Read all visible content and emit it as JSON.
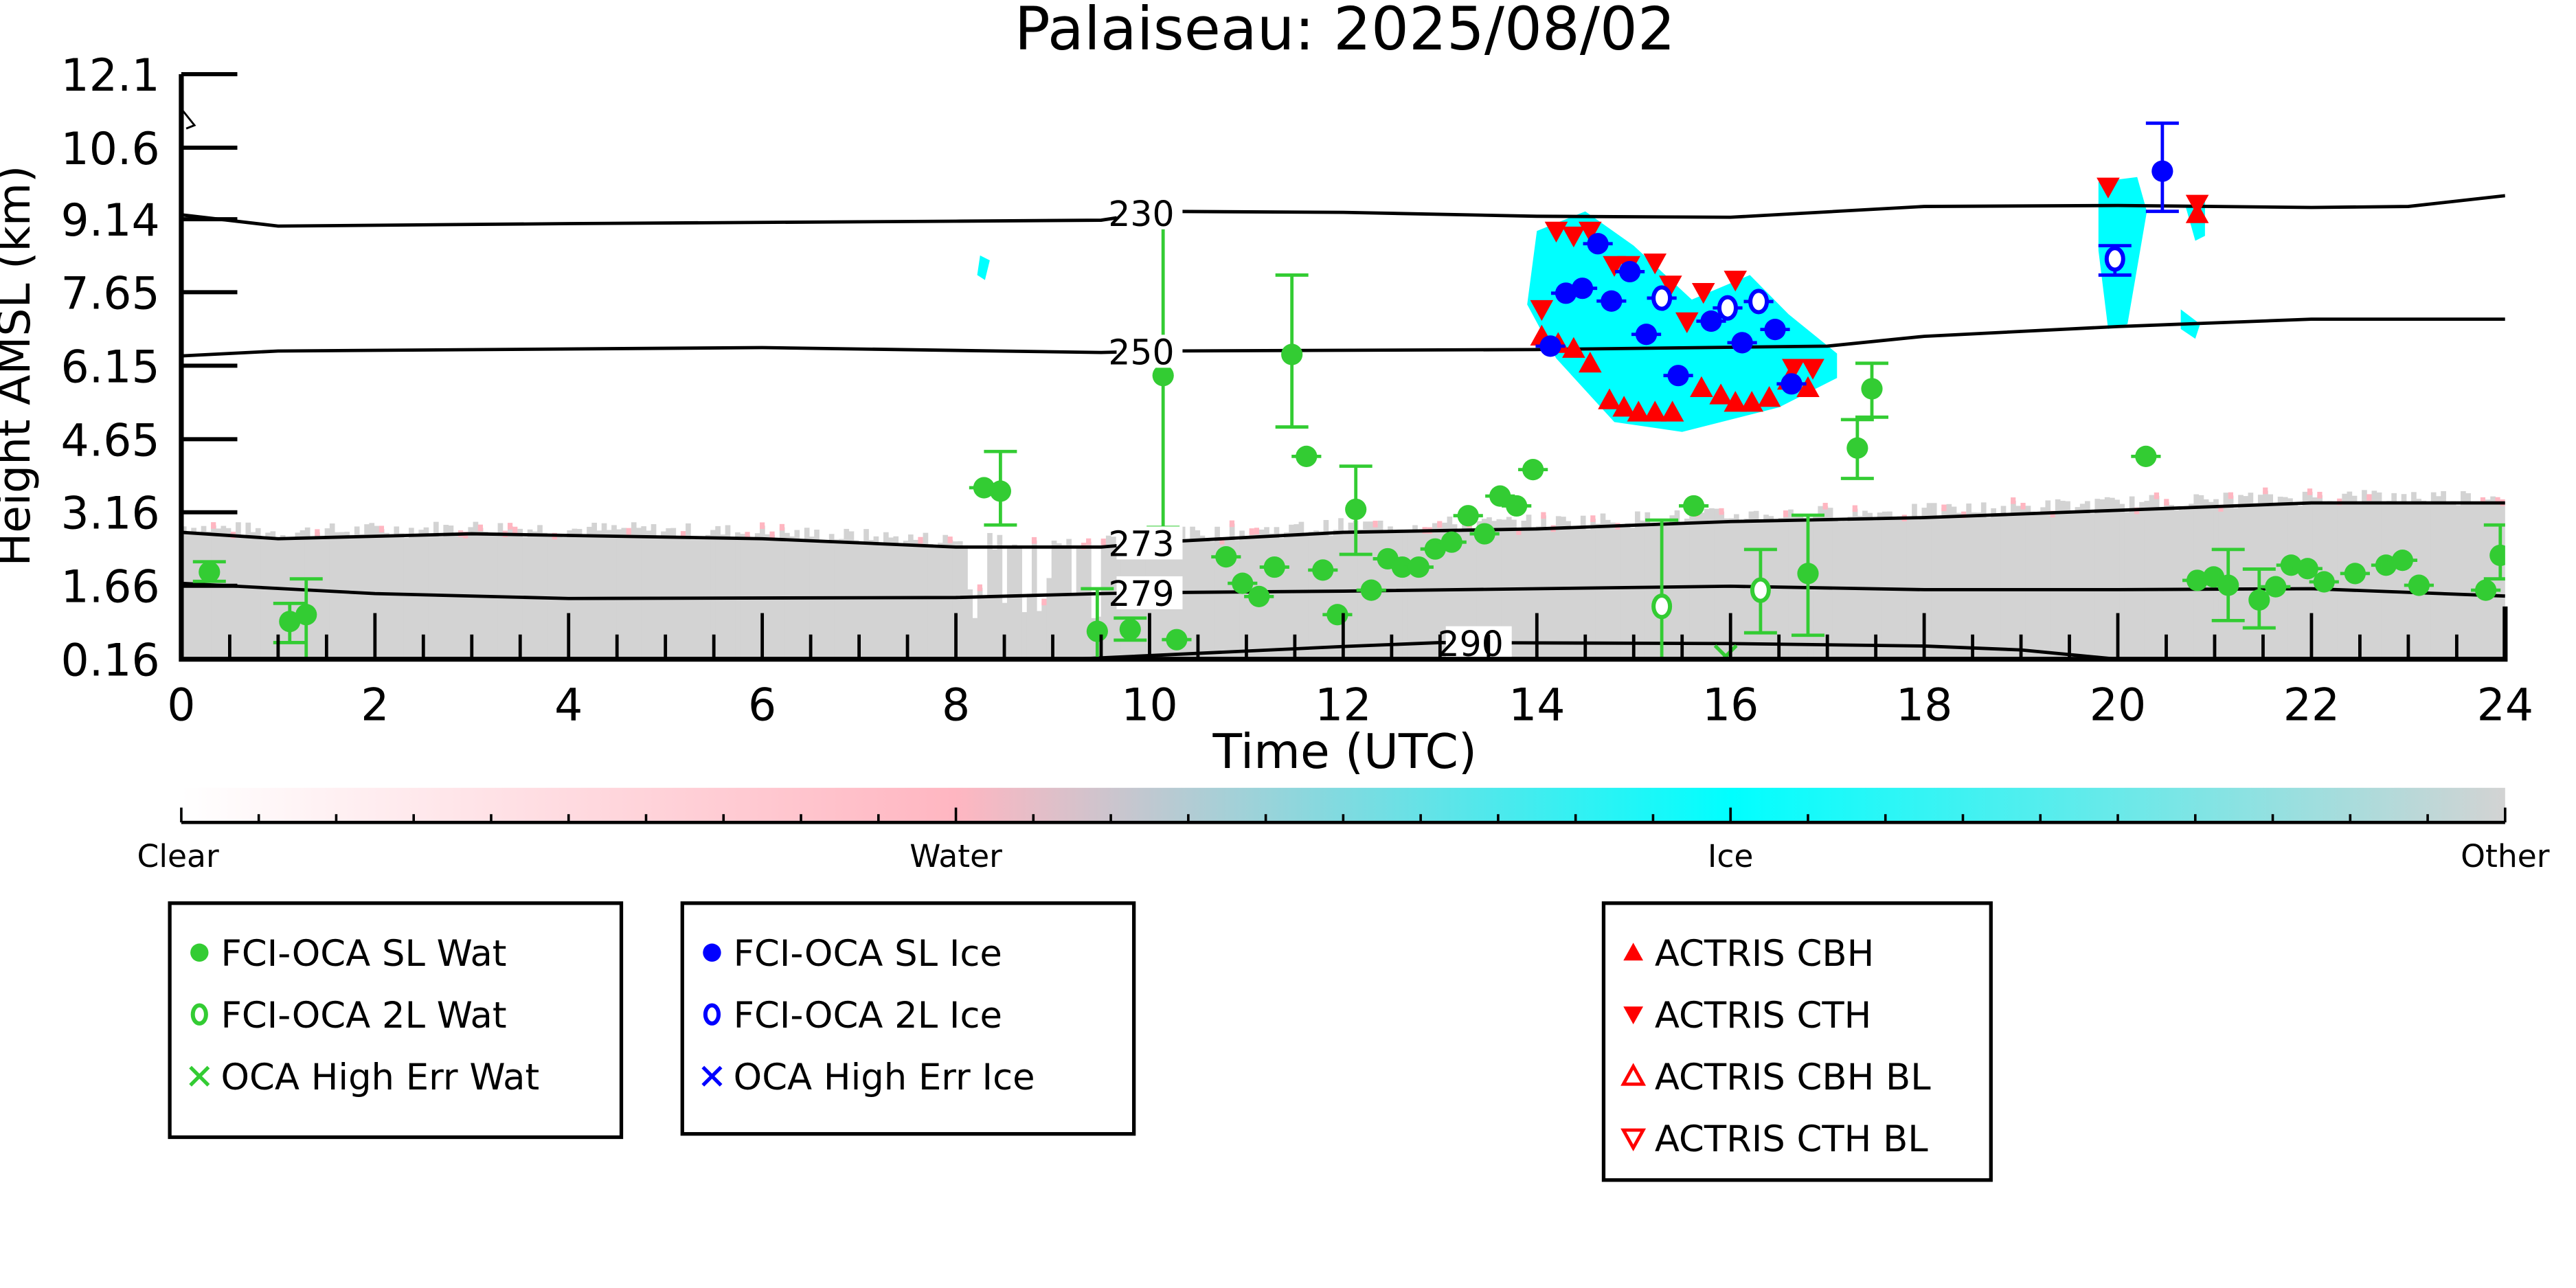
{
  "chart_data": {
    "type": "scatter",
    "title": "Palaiseau: 2025/08/02",
    "xlabel": "Time (UTC)",
    "ylabel": "Height AMSL (km)",
    "xlim": [
      0,
      24
    ],
    "ylim": [
      0.16,
      12.1
    ],
    "xticks": [
      "0",
      "2",
      "4",
      "6",
      "8",
      "10",
      "12",
      "14",
      "16",
      "18",
      "20",
      "22",
      "24"
    ],
    "yticks": [
      "0.16",
      "1.66",
      "3.16",
      "4.65",
      "6.15",
      "7.65",
      "9.14",
      "10.6",
      "12.1"
    ],
    "colorbar": {
      "labels": [
        "Clear",
        "Water",
        "Ice",
        "Other"
      ],
      "colors": [
        "#ffffff",
        "#ffb6c1",
        "#00ffff",
        "#d3d3d3"
      ]
    },
    "contours": [
      {
        "label": "230",
        "label_x": 10,
        "points": [
          [
            0,
            9.23
          ],
          [
            1,
            9.0
          ],
          [
            4,
            9.05
          ],
          [
            8,
            9.1
          ],
          [
            9.5,
            9.12
          ],
          [
            10.1,
            9.3
          ],
          [
            12,
            9.28
          ],
          [
            14,
            9.2
          ],
          [
            16,
            9.18
          ],
          [
            18,
            9.4
          ],
          [
            20,
            9.42
          ],
          [
            22,
            9.38
          ],
          [
            23,
            9.4
          ],
          [
            24,
            9.62
          ]
        ]
      },
      {
        "label": "250",
        "label_x": 10,
        "points": [
          [
            0,
            6.35
          ],
          [
            1,
            6.45
          ],
          [
            6,
            6.52
          ],
          [
            9.5,
            6.42
          ],
          [
            10.1,
            6.45
          ],
          [
            14,
            6.48
          ],
          [
            17,
            6.55
          ],
          [
            18,
            6.75
          ],
          [
            20,
            6.95
          ],
          [
            22,
            7.1
          ],
          [
            24,
            7.1
          ]
        ]
      },
      {
        "label": "273",
        "label_x": 10,
        "points": [
          [
            0,
            2.75
          ],
          [
            1,
            2.62
          ],
          [
            3,
            2.72
          ],
          [
            6,
            2.62
          ],
          [
            8,
            2.45
          ],
          [
            9.5,
            2.45
          ],
          [
            10.1,
            2.55
          ],
          [
            12,
            2.75
          ],
          [
            14,
            2.82
          ],
          [
            16,
            2.97
          ],
          [
            18,
            3.05
          ],
          [
            20,
            3.2
          ],
          [
            22,
            3.35
          ],
          [
            24,
            3.35
          ]
        ]
      },
      {
        "label": "279",
        "label_x": 10,
        "points": [
          [
            0,
            1.71
          ],
          [
            2,
            1.5
          ],
          [
            4,
            1.4
          ],
          [
            8,
            1.42
          ],
          [
            9.5,
            1.5
          ],
          [
            10.1,
            1.52
          ],
          [
            12,
            1.55
          ],
          [
            16,
            1.65
          ],
          [
            18,
            1.58
          ],
          [
            20,
            1.58
          ],
          [
            22,
            1.6
          ],
          [
            24,
            1.45
          ]
        ]
      },
      {
        "label": "290",
        "label_x": 13.4,
        "points": [
          [
            9.2,
            0.16
          ],
          [
            12,
            0.42
          ],
          [
            13,
            0.5
          ],
          [
            16,
            0.48
          ],
          [
            18,
            0.43
          ],
          [
            19,
            0.35
          ],
          [
            20,
            0.16
          ]
        ]
      }
    ],
    "series": [
      {
        "name": "FCI-OCA SL Wat",
        "color": "#33cc33",
        "marker": "filled-circle",
        "points": [
          {
            "x": 0.29,
            "y": 1.94,
            "err": [
              1.75,
              2.15
            ]
          },
          {
            "x": 1.12,
            "y": 0.93,
            "err": [
              0.5,
              1.3
            ]
          },
          {
            "x": 1.29,
            "y": 1.07,
            "err": [
              0.16,
              1.8
            ]
          },
          {
            "x": 8.29,
            "y": 3.66
          },
          {
            "x": 8.46,
            "y": 3.59,
            "err": [
              2.9,
              4.4
            ]
          },
          {
            "x": 10.14,
            "y": 5.95,
            "err": [
              2.85,
              9.0
            ]
          },
          {
            "x": 11.47,
            "y": 6.38,
            "err": [
              4.9,
              8.0
            ]
          },
          {
            "x": 11.62,
            "y": 4.3
          },
          {
            "x": 9.46,
            "y": 0.73,
            "err": [
              0.16,
              1.6
            ]
          },
          {
            "x": 9.8,
            "y": 0.77,
            "err": [
              0.55,
              1.0
            ]
          },
          {
            "x": 10.28,
            "y": 0.56
          },
          {
            "x": 10.79,
            "y": 2.25
          },
          {
            "x": 10.96,
            "y": 1.71
          },
          {
            "x": 11.13,
            "y": 1.44
          },
          {
            "x": 11.29,
            "y": 2.04
          },
          {
            "x": 11.79,
            "y": 1.98
          },
          {
            "x": 11.94,
            "y": 1.07
          },
          {
            "x": 12.13,
            "y": 3.22,
            "err": [
              2.3,
              4.1
            ]
          },
          {
            "x": 12.29,
            "y": 1.57
          },
          {
            "x": 12.46,
            "y": 2.21
          },
          {
            "x": 12.61,
            "y": 2.04
          },
          {
            "x": 12.78,
            "y": 2.04
          },
          {
            "x": 12.95,
            "y": 2.41
          },
          {
            "x": 13.12,
            "y": 2.55
          },
          {
            "x": 13.29,
            "y": 3.09
          },
          {
            "x": 13.46,
            "y": 2.72
          },
          {
            "x": 13.62,
            "y": 3.49
          },
          {
            "x": 13.79,
            "y": 3.29
          },
          {
            "x": 13.96,
            "y": 4.03
          },
          {
            "x": 15.62,
            "y": 3.29
          },
          {
            "x": 16.8,
            "y": 1.91,
            "err": [
              0.65,
              3.1
            ]
          },
          {
            "x": 17.31,
            "y": 4.47,
            "err": [
              3.85,
              5.05
            ]
          },
          {
            "x": 17.46,
            "y": 5.68,
            "err": [
              5.1,
              6.2
            ]
          },
          {
            "x": 20.29,
            "y": 4.3
          },
          {
            "x": 20.82,
            "y": 1.77
          },
          {
            "x": 20.99,
            "y": 1.84
          },
          {
            "x": 21.14,
            "y": 1.67,
            "err": [
              0.95,
              2.4
            ]
          },
          {
            "x": 21.46,
            "y": 1.37,
            "err": [
              0.8,
              2.0
            ]
          },
          {
            "x": 21.63,
            "y": 1.64
          },
          {
            "x": 21.79,
            "y": 2.08
          },
          {
            "x": 21.96,
            "y": 2.01
          },
          {
            "x": 22.13,
            "y": 1.74
          },
          {
            "x": 22.45,
            "y": 1.91
          },
          {
            "x": 22.77,
            "y": 2.08
          },
          {
            "x": 22.94,
            "y": 2.18
          },
          {
            "x": 23.11,
            "y": 1.67
          },
          {
            "x": 23.8,
            "y": 1.57
          },
          {
            "x": 23.95,
            "y": 2.28,
            "err": [
              1.8,
              2.9
            ]
          }
        ]
      },
      {
        "name": "FCI-OCA 2L Wat",
        "color": "#33cc33",
        "marker": "open-circle",
        "points": [
          {
            "x": 15.29,
            "y": 1.24,
            "err": [
              0.16,
              3.0
            ]
          },
          {
            "x": 16.31,
            "y": 1.57,
            "err": [
              0.7,
              2.4
            ]
          }
        ]
      },
      {
        "name": "OCA High Err Wat",
        "color": "#33cc33",
        "marker": "x",
        "points": [
          {
            "x": 15.95,
            "y": 0.22
          }
        ]
      },
      {
        "name": "FCI-OCA SL Ice",
        "color": "#0000ff",
        "marker": "filled-circle",
        "points": [
          {
            "x": 14.14,
            "y": 6.55
          },
          {
            "x": 14.3,
            "y": 7.63
          },
          {
            "x": 14.47,
            "y": 7.73
          },
          {
            "x": 14.63,
            "y": 8.64
          },
          {
            "x": 14.77,
            "y": 7.47
          },
          {
            "x": 14.96,
            "y": 8.07
          },
          {
            "x": 15.13,
            "y": 6.79
          },
          {
            "x": 15.46,
            "y": 5.95
          },
          {
            "x": 15.8,
            "y": 7.06
          },
          {
            "x": 16.12,
            "y": 6.62
          },
          {
            "x": 16.46,
            "y": 6.89
          },
          {
            "x": 16.63,
            "y": 5.78
          },
          {
            "x": 20.46,
            "y": 10.12,
            "err": [
              9.3,
              11.1
            ]
          }
        ]
      },
      {
        "name": "FCI-OCA 2L Ice",
        "color": "#0000ff",
        "marker": "open-circle",
        "points": [
          {
            "x": 15.29,
            "y": 7.53
          },
          {
            "x": 15.97,
            "y": 7.33
          },
          {
            "x": 16.29,
            "y": 7.46
          },
          {
            "x": 19.97,
            "y": 8.33,
            "err": [
              8.0,
              8.6
            ]
          }
        ]
      },
      {
        "name": "OCA High Err Ice",
        "color": "#0000ff",
        "marker": "x",
        "points": []
      },
      {
        "name": "ACTRIS CBH",
        "color": "#ff0000",
        "marker": "triangle-up",
        "points": [
          {
            "x": 14.05,
            "y": 6.75
          },
          {
            "x": 14.22,
            "y": 6.6
          },
          {
            "x": 14.38,
            "y": 6.5
          },
          {
            "x": 14.55,
            "y": 6.2
          },
          {
            "x": 14.75,
            "y": 5.45
          },
          {
            "x": 14.9,
            "y": 5.3
          },
          {
            "x": 15.05,
            "y": 5.2
          },
          {
            "x": 15.22,
            "y": 5.2
          },
          {
            "x": 15.4,
            "y": 5.2
          },
          {
            "x": 15.7,
            "y": 5.7
          },
          {
            "x": 15.9,
            "y": 5.55
          },
          {
            "x": 16.05,
            "y": 5.4
          },
          {
            "x": 16.22,
            "y": 5.4
          },
          {
            "x": 16.4,
            "y": 5.5
          },
          {
            "x": 16.6,
            "y": 5.85
          },
          {
            "x": 16.8,
            "y": 5.7
          },
          {
            "x": 20.82,
            "y": 9.25
          }
        ]
      },
      {
        "name": "ACTRIS CTH",
        "color": "#ff0000",
        "marker": "triangle-down",
        "points": [
          {
            "x": 14.05,
            "y": 7.3
          },
          {
            "x": 14.2,
            "y": 8.9
          },
          {
            "x": 14.38,
            "y": 8.8
          },
          {
            "x": 14.55,
            "y": 8.9
          },
          {
            "x": 14.8,
            "y": 8.2
          },
          {
            "x": 14.95,
            "y": 8.2
          },
          {
            "x": 15.22,
            "y": 8.25
          },
          {
            "x": 15.38,
            "y": 7.8
          },
          {
            "x": 15.55,
            "y": 7.05
          },
          {
            "x": 15.72,
            "y": 7.65
          },
          {
            "x": 16.05,
            "y": 7.9
          },
          {
            "x": 16.65,
            "y": 6.1
          },
          {
            "x": 16.85,
            "y": 6.1
          },
          {
            "x": 19.9,
            "y": 9.8
          },
          {
            "x": 20.82,
            "y": 9.45
          }
        ]
      },
      {
        "name": "ACTRIS CBH BL",
        "color": "#ff0000",
        "marker": "open-triangle-up",
        "points": []
      },
      {
        "name": "ACTRIS CTH BL",
        "color": "#ff0000",
        "marker": "open-triangle-down",
        "points": []
      }
    ]
  }
}
